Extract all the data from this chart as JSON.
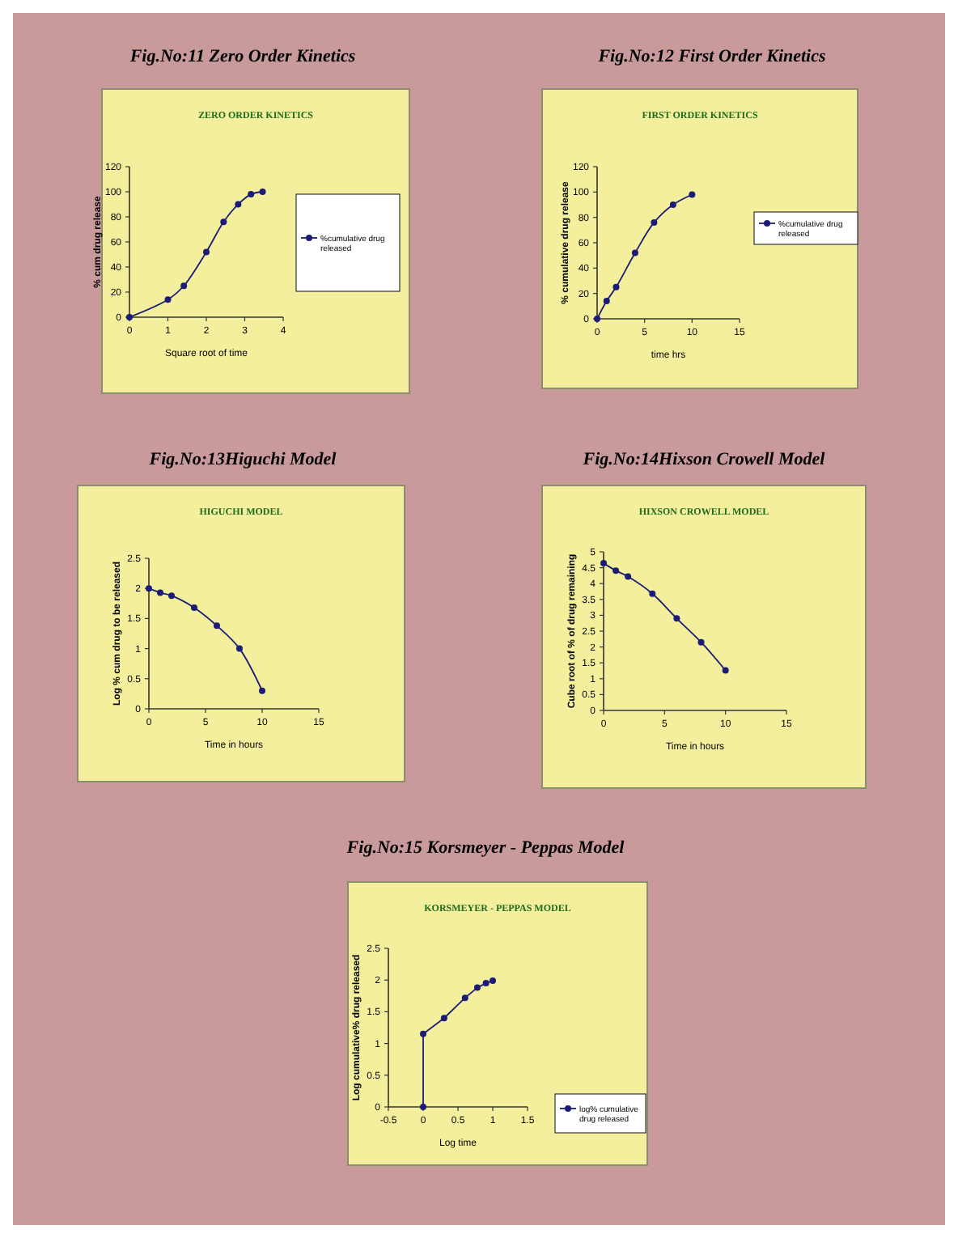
{
  "chart_data": [
    {
      "type": "line",
      "title": "Fig.No:11 Zero Order Kinetics",
      "subtitle": "ZERO ORDER KINETICS",
      "xlabel": "Square root of time",
      "ylabel": "% cum drug release",
      "x": [
        0,
        1,
        1.414,
        2,
        2.449,
        2.828,
        3.162,
        3.464
      ],
      "series": [
        {
          "name": "%cumulative drug released",
          "color": "#1c1c78",
          "values": [
            0,
            14,
            25,
            52,
            76,
            90,
            98,
            100
          ]
        }
      ],
      "xlim": [
        0,
        4
      ],
      "xticks": [
        0,
        1,
        2,
        3,
        4
      ],
      "ylim": [
        0,
        120
      ],
      "yticks": [
        0,
        20,
        40,
        60,
        80,
        100,
        120
      ],
      "grid": false,
      "legend": "right",
      "marker": "circle",
      "line_style": "solid"
    },
    {
      "type": "line",
      "title": "Fig.No:12 First Order Kinetics",
      "subtitle": "FIRST ORDER KINETICS",
      "xlabel": "time hrs",
      "ylabel": "% cumulative drug release",
      "x": [
        0,
        1,
        2,
        4,
        6,
        8,
        10
      ],
      "series": [
        {
          "name": "%cumulative drug released",
          "color": "#1c1c78",
          "values": [
            0,
            14,
            25,
            52,
            76,
            90,
            98
          ]
        }
      ],
      "xlim": [
        0,
        15
      ],
      "xticks": [
        0,
        5,
        10,
        15
      ],
      "ylim": [
        0,
        120
      ],
      "yticks": [
        0,
        20,
        40,
        60,
        80,
        100,
        120
      ],
      "grid": false,
      "legend": "right",
      "marker": "circle",
      "line_style": "solid"
    },
    {
      "type": "line",
      "title": "Fig.No:13Higuchi Model",
      "subtitle": "HIGUCHI MODEL",
      "xlabel": "Time in hours",
      "ylabel": "Log % cum drug to be released",
      "x": [
        0,
        1,
        2,
        4,
        6,
        8,
        10
      ],
      "series": [
        {
          "color": "#1c1c78",
          "values": [
            2.0,
            1.93,
            1.88,
            1.68,
            1.38,
            1.0,
            0.3
          ]
        }
      ],
      "xlim": [
        0,
        15
      ],
      "xticks": [
        0,
        5,
        10,
        15
      ],
      "ylim": [
        0,
        2.5
      ],
      "yticks": [
        0,
        0.5,
        1,
        1.5,
        2,
        2.5
      ],
      "grid": false,
      "legend": false,
      "marker": "circle",
      "line_style": "solid"
    },
    {
      "type": "line",
      "title": "Fig.No:14Hixson Crowell Model",
      "subtitle": "HIXSON CROWELL MODEL",
      "xlabel": "Time in hours",
      "ylabel": "Cube root of % of drug remaining",
      "x": [
        0,
        1,
        2,
        4,
        6,
        8,
        10
      ],
      "series": [
        {
          "color": "#1c1c78",
          "values": [
            4.64,
            4.41,
            4.22,
            3.68,
            2.9,
            2.15,
            1.26
          ]
        }
      ],
      "xlim": [
        0,
        15
      ],
      "xticks": [
        0,
        5,
        10,
        15
      ],
      "ylim": [
        0,
        5
      ],
      "yticks": [
        0,
        0.5,
        1,
        1.5,
        2,
        2.5,
        3,
        3.5,
        4,
        4.5,
        5
      ],
      "grid": false,
      "legend": false,
      "marker": "circle",
      "line_style": "solid"
    },
    {
      "type": "line",
      "title": "Fig.No:15 Korsmeyer - Peppas Model",
      "subtitle": "KORSMEYER - PEPPAS MODEL",
      "xlabel": "Log time",
      "ylabel": "Log cumulative% drug released",
      "x": [
        0,
        0,
        0.301,
        0.602,
        0.778,
        0.903,
        1.0
      ],
      "series": [
        {
          "name": "log% cumulative drug released",
          "color": "#1c1c78",
          "values": [
            0,
            1.15,
            1.4,
            1.72,
            1.88,
            1.95,
            1.99
          ]
        }
      ],
      "xlim": [
        -0.5,
        1.5
      ],
      "xticks": [
        -0.5,
        0,
        0.5,
        1,
        1.5
      ],
      "ylim": [
        0,
        2.5
      ],
      "yticks": [
        0,
        0.5,
        1,
        1.5,
        2,
        2.5
      ],
      "grid": false,
      "legend": "bottom right",
      "marker": "circle",
      "line_style": "solid"
    }
  ]
}
